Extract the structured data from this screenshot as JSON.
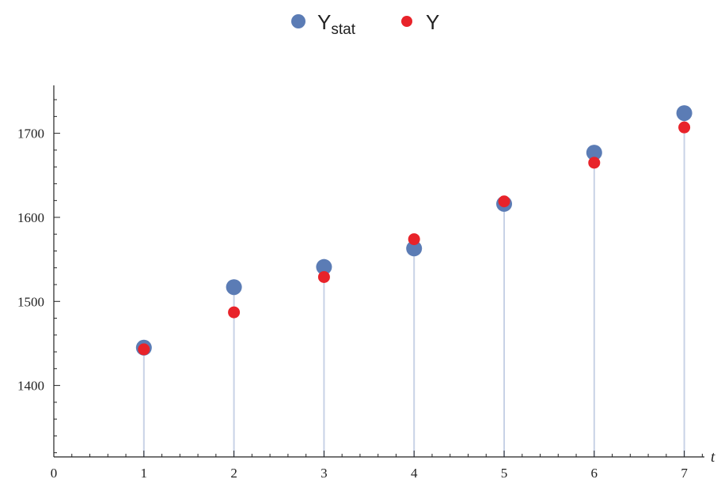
{
  "chart_data": {
    "type": "scatter",
    "title": "",
    "xlabel": "t",
    "ylabel": "",
    "x": [
      1,
      2,
      3,
      4,
      5,
      6,
      7
    ],
    "series": [
      {
        "name": "Y",
        "name_sub": "stat",
        "color": "#5b7cb5",
        "values": [
          1445,
          1517,
          1541,
          1563,
          1616,
          1677,
          1724
        ]
      },
      {
        "name": "Y",
        "name_sub": "",
        "color": "#e8232a",
        "values": [
          1443,
          1487,
          1529,
          1574,
          1619,
          1665,
          1707
        ]
      }
    ],
    "xlim": [
      0,
      7.2
    ],
    "ylim": [
      1315,
      1757
    ],
    "x_ticks": [
      0,
      1,
      2,
      3,
      4,
      5,
      6,
      7
    ],
    "y_ticks": [
      1400,
      1500,
      1600,
      1700
    ],
    "stems": true,
    "grid": false,
    "legend_position": "top-center"
  }
}
